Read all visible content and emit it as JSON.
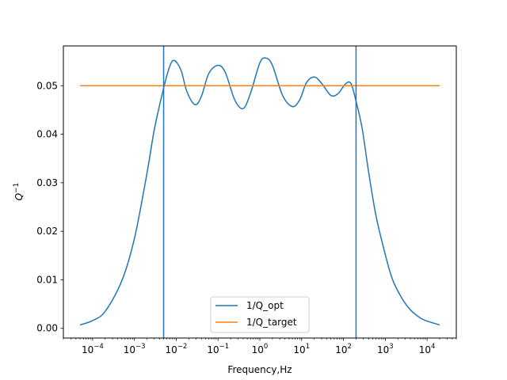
{
  "chart_data": {
    "type": "line",
    "title": "",
    "xlabel": "Frequency,Hz",
    "ylabel_base": "Q",
    "ylabel_exp": "−1",
    "xscale": "log",
    "xlim": [
      2e-05,
      50000.0
    ],
    "ylim": [
      -0.002,
      0.0582
    ],
    "x_ticks": [
      {
        "value": 0.0001,
        "base": "10",
        "exp": "−4"
      },
      {
        "value": 0.001,
        "base": "10",
        "exp": "−3"
      },
      {
        "value": 0.01,
        "base": "10",
        "exp": "−2"
      },
      {
        "value": 0.1,
        "base": "10",
        "exp": "−1"
      },
      {
        "value": 1.0,
        "base": "10",
        "exp": "0"
      },
      {
        "value": 10.0,
        "base": "10",
        "exp": "1"
      },
      {
        "value": 100.0,
        "base": "10",
        "exp": "2"
      },
      {
        "value": 1000.0,
        "base": "10",
        "exp": "3"
      },
      {
        "value": 10000.0,
        "base": "10",
        "exp": "4"
      }
    ],
    "y_ticks": [
      {
        "value": 0.0,
        "label": "0.00"
      },
      {
        "value": 0.01,
        "label": "0.01"
      },
      {
        "value": 0.02,
        "label": "0.02"
      },
      {
        "value": 0.03,
        "label": "0.03"
      },
      {
        "value": 0.04,
        "label": "0.04"
      },
      {
        "value": 0.05,
        "label": "0.05"
      }
    ],
    "vlines": [
      {
        "x": 0.005,
        "color": "#1f77b4"
      },
      {
        "x": 200,
        "color": "#1f77b4"
      }
    ],
    "series": [
      {
        "name": "1/Q_opt",
        "color": "#1f77b4",
        "x": [
          5e-05,
          0.0001,
          0.0002,
          0.0005,
          0.001,
          0.002,
          0.003,
          0.005,
          0.007,
          0.009,
          0.013,
          0.018,
          0.028,
          0.04,
          0.06,
          0.1,
          0.15,
          0.25,
          0.4,
          0.6,
          1.0,
          1.4,
          2.0,
          3.5,
          6.0,
          9.0,
          13,
          20,
          30,
          50,
          75,
          110,
          150,
          200,
          280,
          400,
          600,
          1000,
          1500,
          2500,
          4000,
          7000,
          10000,
          20000
        ],
        "y": [
          0.0007,
          0.0016,
          0.0035,
          0.0098,
          0.0185,
          0.032,
          0.041,
          0.0495,
          0.054,
          0.0552,
          0.0532,
          0.0488,
          0.0461,
          0.0478,
          0.0525,
          0.0542,
          0.0527,
          0.0471,
          0.0453,
          0.0485,
          0.0547,
          0.0557,
          0.0542,
          0.048,
          0.0457,
          0.0471,
          0.0506,
          0.0518,
          0.0505,
          0.048,
          0.0484,
          0.0503,
          0.0505,
          0.0468,
          0.0412,
          0.0322,
          0.0232,
          0.0152,
          0.01,
          0.0062,
          0.0038,
          0.0021,
          0.0015,
          0.0007
        ]
      },
      {
        "name": "1/Q_target",
        "color": "#ff7f0e",
        "x": [
          5e-05,
          20000
        ],
        "y": [
          0.05,
          0.05
        ]
      }
    ],
    "legend_position": "lower center"
  }
}
